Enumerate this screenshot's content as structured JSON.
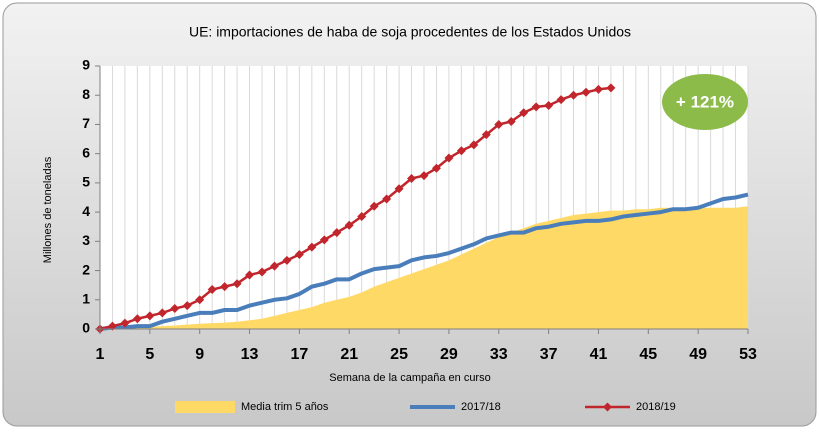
{
  "chart_data": {
    "type": "line",
    "title": "UE: importaciones de haba de soja procedentes de los Estados Unidos",
    "x_label": "Semana de la campaña en curso",
    "y_label": "Millones de toneladas",
    "annotation": "+ 121%",
    "annotation_color": "#8dbb4a",
    "x": [
      1,
      2,
      3,
      4,
      5,
      6,
      7,
      8,
      9,
      10,
      11,
      12,
      13,
      14,
      15,
      16,
      17,
      18,
      19,
      20,
      21,
      22,
      23,
      24,
      25,
      26,
      27,
      28,
      29,
      30,
      31,
      32,
      33,
      34,
      35,
      36,
      37,
      38,
      39,
      40,
      41,
      42,
      43,
      44,
      45,
      46,
      47,
      48,
      49,
      50,
      51,
      52,
      53
    ],
    "xlim": [
      1,
      53
    ],
    "xticks": [
      1,
      5,
      9,
      13,
      17,
      21,
      25,
      29,
      33,
      37,
      41,
      45,
      49,
      53
    ],
    "ylim": [
      0,
      9
    ],
    "yticks": [
      0,
      1,
      2,
      3,
      4,
      5,
      6,
      7,
      8,
      9
    ],
    "grid": "x",
    "series": [
      {
        "name": "Media trim 5 años",
        "kind": "area",
        "color": "#ffd966",
        "values": [
          0,
          0,
          0.02,
          0.05,
          0.07,
          0.1,
          0.12,
          0.15,
          0.18,
          0.2,
          0.22,
          0.25,
          0.3,
          0.35,
          0.45,
          0.55,
          0.65,
          0.75,
          0.9,
          1.0,
          1.1,
          1.25,
          1.45,
          1.6,
          1.75,
          1.9,
          2.05,
          2.2,
          2.35,
          2.55,
          2.75,
          2.95,
          3.15,
          3.3,
          3.45,
          3.6,
          3.7,
          3.8,
          3.9,
          3.95,
          4.0,
          4.05,
          4.05,
          4.1,
          4.1,
          4.15,
          4.15,
          4.15,
          4.15,
          4.15,
          4.15,
          4.15,
          4.2
        ]
      },
      {
        "name": "2017/18",
        "kind": "line",
        "color": "#4a7ebb",
        "values": [
          0,
          0.05,
          0.05,
          0.1,
          0.1,
          0.25,
          0.35,
          0.45,
          0.55,
          0.55,
          0.65,
          0.65,
          0.8,
          0.9,
          1.0,
          1.05,
          1.2,
          1.45,
          1.55,
          1.7,
          1.7,
          1.9,
          2.05,
          2.1,
          2.15,
          2.35,
          2.45,
          2.5,
          2.6,
          2.75,
          2.9,
          3.1,
          3.2,
          3.3,
          3.3,
          3.45,
          3.5,
          3.6,
          3.65,
          3.7,
          3.7,
          3.75,
          3.85,
          3.9,
          3.95,
          4.0,
          4.1,
          4.1,
          4.15,
          4.3,
          4.45,
          4.5,
          4.6
        ]
      },
      {
        "name": "2018/19",
        "kind": "marker-line",
        "color": "#c0262c",
        "values": [
          0,
          0.1,
          0.2,
          0.35,
          0.45,
          0.55,
          0.7,
          0.8,
          1.0,
          1.35,
          1.45,
          1.55,
          1.85,
          1.95,
          2.15,
          2.35,
          2.55,
          2.8,
          3.05,
          3.3,
          3.55,
          3.85,
          4.2,
          4.45,
          4.8,
          5.15,
          5.25,
          5.5,
          5.85,
          6.1,
          6.3,
          6.65,
          7.0,
          7.1,
          7.4,
          7.6,
          7.65,
          7.85,
          8.0,
          8.1,
          8.2,
          8.25,
          null,
          null,
          null,
          null,
          null,
          null,
          null,
          null,
          null,
          null,
          null
        ]
      }
    ]
  }
}
